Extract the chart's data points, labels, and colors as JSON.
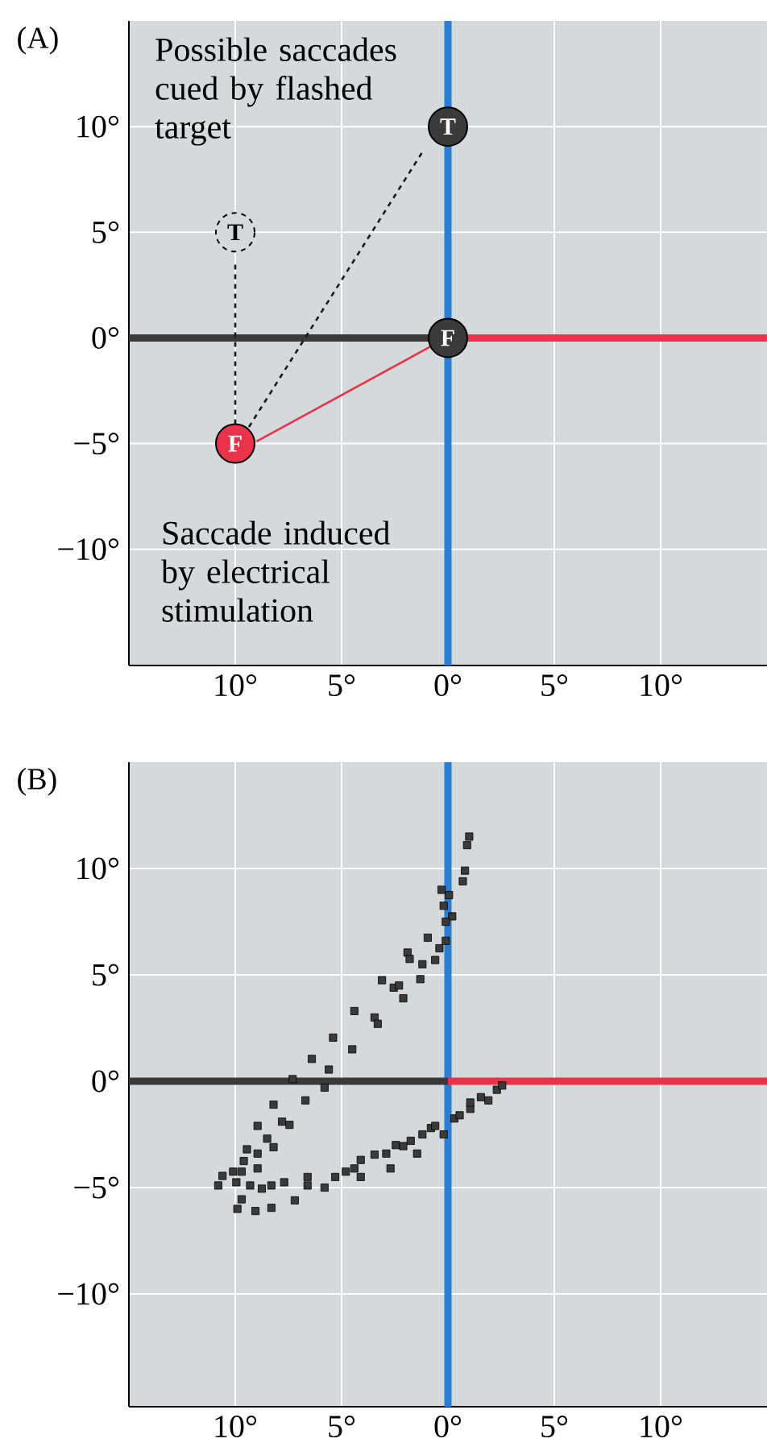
{
  "chart_data": [
    {
      "type": "scatter",
      "title": "(A)",
      "xlim": [
        -15,
        15
      ],
      "ylim": [
        -15.5,
        15
      ],
      "xticks": [
        {
          "value": -10,
          "label": "10°"
        },
        {
          "value": -5,
          "label": "5°"
        },
        {
          "value": 0,
          "label": "0°"
        },
        {
          "value": 5,
          "label": "5°"
        },
        {
          "value": 10,
          "label": "10°"
        }
      ],
      "yticks": [
        {
          "value": -10,
          "label": "−10°"
        },
        {
          "value": -5,
          "label": "−5°"
        },
        {
          "value": 0,
          "label": "0°"
        },
        {
          "value": 5,
          "label": "5°"
        },
        {
          "value": 10,
          "label": "10°"
        }
      ],
      "grid": true,
      "marker": "circle",
      "ref_lines": [
        {
          "axis": "x",
          "value": 0,
          "color": "#2a7fd4"
        }
      ],
      "annotations": [
        "Possible saccades cued by flashed target",
        "Saccade induced by electrical stimulation"
      ],
      "series": [
        {
          "type": "line",
          "marker": "none",
          "color": "#3a3a3a",
          "x": [
            -15,
            0
          ],
          "values": [
            0,
            0
          ]
        },
        {
          "type": "line",
          "marker": "none",
          "color": "#e8334a",
          "x": [
            0,
            15
          ],
          "values": [
            0,
            0
          ]
        },
        {
          "type": "line",
          "marker": "none",
          "color": "#1a1a1a",
          "line_style": "dashed",
          "x": [
            -10,
            -10
          ],
          "values": [
            -5,
            3.6
          ]
        },
        {
          "type": "line",
          "marker": "none",
          "color": "#1a1a1a",
          "line_style": "dashed",
          "x": [
            -9.6,
            -1.2
          ],
          "values": [
            -4.6,
            8.8
          ]
        },
        {
          "type": "line",
          "marker": "none",
          "color": "#e8334a",
          "line_style": "solid",
          "x": [
            -0.8,
            -9
          ],
          "values": [
            -0.4,
            -4.9
          ]
        },
        {
          "color": "#3a3a3a",
          "x": [
            0
          ],
          "values": [
            10
          ],
          "value_labels": [
            "T"
          ]
        },
        {
          "color": "#d4d9dc",
          "line_style": "dashed",
          "x": [
            -10
          ],
          "values": [
            5
          ],
          "value_labels": [
            "T"
          ]
        },
        {
          "color": "#3a3a3a",
          "x": [
            0
          ],
          "values": [
            0
          ],
          "value_labels": [
            "F"
          ]
        },
        {
          "color": "#e8334a",
          "x": [
            -10
          ],
          "values": [
            -5
          ],
          "value_labels": [
            "F"
          ]
        }
      ]
    },
    {
      "type": "scatter",
      "title": "(B)",
      "xlim": [
        -15,
        15
      ],
      "ylim": [
        -15.3,
        15
      ],
      "xticks": [
        {
          "value": -10,
          "label": "10°"
        },
        {
          "value": -5,
          "label": "5°"
        },
        {
          "value": 0,
          "label": "0°"
        },
        {
          "value": 5,
          "label": "5°"
        },
        {
          "value": 10,
          "label": "10°"
        }
      ],
      "yticks": [
        {
          "value": -10,
          "label": "−10°"
        },
        {
          "value": -5,
          "label": "−5°"
        },
        {
          "value": 0,
          "label": "0°"
        },
        {
          "value": 5,
          "label": "5°"
        },
        {
          "value": 10,
          "label": "10°"
        }
      ],
      "grid": true,
      "marker": "square",
      "ref_lines": [
        {
          "axis": "x",
          "value": 0,
          "color": "#2a7fd4"
        }
      ],
      "series": [
        {
          "type": "line",
          "marker": "none",
          "color": "#3a3a3a",
          "x": [
            -15,
            0
          ],
          "values": [
            0,
            0
          ]
        },
        {
          "type": "line",
          "marker": "none",
          "color": "#e8334a",
          "x": [
            0,
            15
          ],
          "values": [
            0,
            0
          ]
        },
        {
          "color": "#3a3a3a",
          "x": [
            1.0,
            0.9,
            0.8,
            0.7,
            0.05,
            -0.2,
            0.2,
            -0.1,
            -0.3,
            -0.95,
            -0.1,
            -0.4,
            -0.6,
            -1.2,
            -1.9,
            -1.8,
            -1.3,
            -3.1,
            -2.55,
            -2.3,
            -2.1,
            -4.4,
            -3.45,
            -3.3,
            -5.4,
            -4.5,
            -6.4,
            -5.6,
            -5.8,
            -7.3,
            -6.7,
            -8.2,
            -7.8,
            -7.45,
            -8.95,
            -8.5,
            -8.2,
            -9.45,
            -8.95,
            -9.6,
            -8.95,
            -10.1,
            -10.6,
            -9.7,
            -10.8,
            -9.95,
            -9.3,
            -8.75,
            -8.3,
            -7.7,
            -7.2,
            -8.3,
            -9.05,
            -9.9,
            -9.7,
            -6.6,
            -5.8,
            -6.6,
            -5.3,
            -4.8,
            -4.4,
            -4.1,
            -4.1,
            -3.45,
            -2.9,
            -2.7,
            -2.45,
            -2.1,
            -1.75,
            -1.45,
            -1.2,
            -0.8,
            -0.6,
            -0.2,
            0.3,
            0.55,
            1.05,
            1.05,
            1.55,
            1.9,
            2.3,
            2.55
          ],
          "values": [
            11.5,
            11.1,
            9.9,
            9.4,
            8.75,
            8.25,
            7.75,
            7.5,
            9.0,
            6.75,
            6.6,
            6.25,
            5.7,
            5.5,
            6.05,
            5.75,
            4.8,
            4.75,
            4.4,
            4.5,
            3.9,
            3.3,
            3.0,
            2.7,
            2.05,
            1.5,
            1.05,
            0.55,
            -0.3,
            0.1,
            -0.9,
            -1.1,
            -1.9,
            -2.05,
            -2.1,
            -2.7,
            -3.1,
            -3.2,
            -3.4,
            -3.75,
            -4.1,
            -4.25,
            -4.45,
            -4.25,
            -4.9,
            -4.75,
            -4.9,
            -5.05,
            -4.9,
            -4.75,
            -5.6,
            -5.95,
            -6.1,
            -6.0,
            -5.55,
            -4.9,
            -5.0,
            -4.5,
            -4.5,
            -4.25,
            -4.1,
            -4.5,
            -3.7,
            -3.45,
            -3.4,
            -4.1,
            -3.0,
            -3.05,
            -2.8,
            -3.4,
            -2.5,
            -2.2,
            -2.1,
            -2.5,
            -1.75,
            -1.6,
            -1.3,
            -1.0,
            -0.75,
            -0.9,
            -0.4,
            -0.2
          ]
        }
      ]
    }
  ]
}
